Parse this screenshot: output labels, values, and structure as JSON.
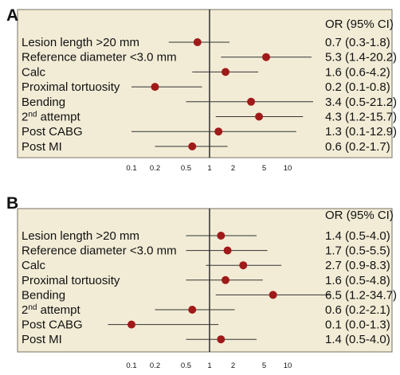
{
  "chart_data": [
    {
      "type": "forest",
      "panel_label": "A",
      "header": "OR (95% CI)",
      "x_scale": "log",
      "reference_line": 1,
      "x_ticks": [
        0.1,
        0.2,
        0.5,
        1,
        2,
        5,
        10
      ],
      "tick_labels": [
        "0.1",
        "0.2",
        "0.5",
        "1",
        "2",
        "5",
        "10"
      ],
      "rows": [
        {
          "label": "Lesion length >20 mm",
          "or": 0.7,
          "lo": 0.3,
          "hi": 1.8,
          "text": "0.7 (0.3-1.8)"
        },
        {
          "label": "Reference diameter <3.0 mm",
          "or": 5.3,
          "lo": 1.4,
          "hi": 20.2,
          "text": "5.3 (1.4-20.2)"
        },
        {
          "label": "Calc",
          "or": 1.6,
          "lo": 0.6,
          "hi": 4.2,
          "text": "1.6 (0.6-4.2)"
        },
        {
          "label": "Proximal tortuosity",
          "or": 0.2,
          "lo": 0.1,
          "hi": 0.8,
          "text": "0.2 (0.1-0.8)"
        },
        {
          "label": "Bending",
          "or": 3.4,
          "lo": 0.5,
          "hi": 21.2,
          "text": "3.4 (0.5-21.2)"
        },
        {
          "label": "2nd attempt",
          "label_main": "2",
          "label_sup": "nd",
          "label_rest": " attempt",
          "or": 4.3,
          "lo": 1.2,
          "hi": 15.7,
          "text": "4.3 (1.2-15.7)"
        },
        {
          "label": "Post CABG",
          "or": 1.3,
          "lo": 0.1,
          "hi": 12.9,
          "text": "1.3 (0.1-12.9)"
        },
        {
          "label": "Post MI",
          "or": 0.6,
          "lo": 0.2,
          "hi": 1.7,
          "text": "0.6 (0.2-1.7)"
        }
      ]
    },
    {
      "type": "forest",
      "panel_label": "B",
      "header": "OR (95% CI)",
      "x_scale": "log",
      "reference_line": 1,
      "x_ticks": [
        0.1,
        0.2,
        0.5,
        1,
        2,
        5,
        10
      ],
      "tick_labels": [
        "0.1",
        "0.2",
        "0.5",
        "1",
        "2",
        "5",
        "10"
      ],
      "rows": [
        {
          "label": "Lesion length >20 mm",
          "or": 1.4,
          "lo": 0.5,
          "hi": 4.0,
          "text": "1.4 (0.5-4.0)"
        },
        {
          "label": "Reference diameter <3.0 mm",
          "or": 1.7,
          "lo": 0.5,
          "hi": 5.5,
          "text": "1.7 (0.5-5.5)"
        },
        {
          "label": "Calc",
          "or": 2.7,
          "lo": 0.9,
          "hi": 8.3,
          "text": "2.7 (0.9-8.3)"
        },
        {
          "label": "Proximal tortuosity",
          "or": 1.6,
          "lo": 0.5,
          "hi": 4.8,
          "text": "1.6 (0.5-4.8)"
        },
        {
          "label": "Bending",
          "or": 6.5,
          "lo": 1.2,
          "hi": 34.7,
          "text": "6.5 (1.2-34.7)"
        },
        {
          "label": "2nd attempt",
          "label_main": "2",
          "label_sup": "nd",
          "label_rest": " attempt",
          "or": 0.6,
          "lo": 0.2,
          "hi": 2.1,
          "text": "0.6 (0.2-2.1)"
        },
        {
          "label": "Post CABG",
          "or": 0.1,
          "lo": 0.0,
          "hi": 1.3,
          "text": "0.1 (0.0-1.3)"
        },
        {
          "label": "Post MI",
          "or": 1.4,
          "lo": 0.5,
          "hi": 4.0,
          "text": "1.4 (0.5-4.0)"
        }
      ]
    }
  ],
  "colors": {
    "panel_bg": "#f2ecd6",
    "panel_border": "#7a7060",
    "marker": "#a01a1a",
    "ci_line": "#333333",
    "ref_line": "#000000"
  }
}
